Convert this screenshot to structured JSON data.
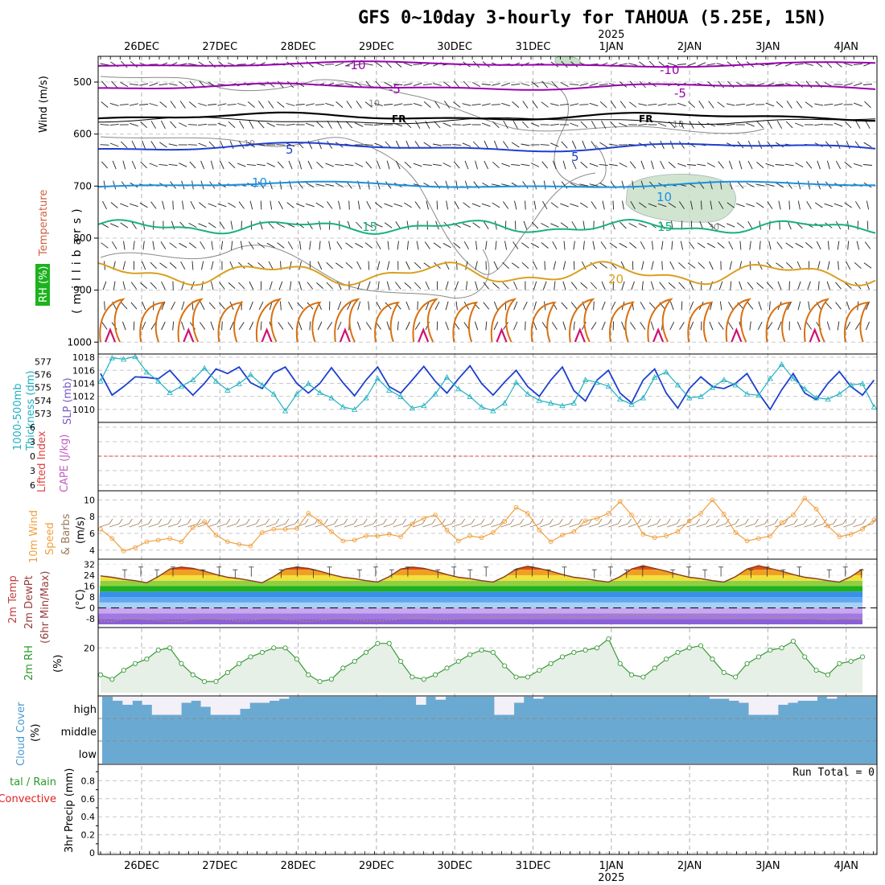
{
  "title": "GFS 0~10day 3-hourly for TAHOUA (5.25E, 15N)",
  "dates": {
    "labels": [
      "26DEC",
      "27DEC",
      "28DEC",
      "29DEC",
      "30DEC",
      "31DEC",
      "1JAN",
      "2JAN",
      "3JAN",
      "4JAN"
    ],
    "year_label": "2025",
    "year_under": "1JAN"
  },
  "colors": {
    "temp_minus10": "#9a00b0",
    "temp_minus5": "#9a00b0",
    "freezing": "#000000",
    "temp_5": "#1e3fd0",
    "temp_10": "#1a90e0",
    "temp_15": "#1ab080",
    "temp_20": "#d9a020",
    "temp_25": "#d87010",
    "temp_30": "#d01070",
    "rh_fill": "#c8e0c8",
    "rh_line": "#8a8a8a",
    "slp": "#1e3fd0",
    "thickness": "#20b0c0",
    "lifted_zero": "#e04040",
    "wind_speed": "#f0a040",
    "barbs": "#9a7a5a",
    "cloud": "#6aaad2",
    "rh2m_line": "#3a9a3a",
    "rh2m_fill": "#e6f0e6",
    "precip_total": "#2a9a2a",
    "precip_convective": "#e02020"
  },
  "panels": {
    "upper_air": {
      "ylabels": [
        {
          "text": "Wind (m/s)",
          "color": "#000000"
        },
        {
          "text": "Temperature (°C)",
          "color": "#c06040",
          "temp_word": "Temperature",
          "temp_color": "#d06040",
          "unit_color": "#d03030"
        },
        {
          "text": "RH (%)",
          "color": "#ffffff",
          "bg": "#1db21d"
        }
      ],
      "unit_label": "(millibars)",
      "pressure_ticks": [
        500,
        600,
        700,
        800,
        900,
        1000
      ],
      "contour_labels": {
        "minus10": "-10",
        "minus5": "-5",
        "fr": "FR",
        "five": "5",
        "ten": "10",
        "fifteen": "15",
        "twenty": "20",
        "rh10": "10",
        "rh30": "30"
      }
    },
    "slp_thickness": {
      "left_label": "1000-500mb\nThickness (dm)",
      "right_label": "SLP (mb)",
      "thickness_ticks": [
        573,
        574,
        575,
        576,
        577
      ],
      "slp_ticks": [
        1010,
        1012,
        1014,
        1016,
        1018
      ]
    },
    "stability": {
      "left_label": "Lifted Index",
      "right_label": "CAPE (J/kg)",
      "ticks": [
        "6",
        "3",
        "0",
        "3",
        "6"
      ]
    },
    "wind10m": {
      "left_label": "10m Wind Speed",
      "right_label": "(m/s)",
      "barbs_label": "& Barbs",
      "ticks": [
        4,
        6,
        8,
        10
      ]
    },
    "temperature": {
      "label_temp": "2m Temp",
      "label_dewpt": "2m DewPt",
      "label_minmax": "(6hr Min/Max)",
      "unit": "(°C)",
      "ticks": [
        32,
        24,
        16,
        8,
        0,
        -8
      ]
    },
    "rh2m": {
      "label": "2m RH",
      "unit": "(%)",
      "ticks": [
        20
      ]
    },
    "cloud": {
      "label": "Cloud Cover",
      "unit": "(%)",
      "layers": [
        "high",
        "middle",
        "low"
      ]
    },
    "precip": {
      "label_total": "tal / Rain",
      "label_convective": "Convective",
      "label_axis": "3hr Precip (mm)",
      "run_total": "Run Total = 0",
      "ticks": [
        "0.8",
        "0.6",
        "0.4",
        "0.2",
        "0"
      ]
    }
  },
  "chart_data": [
    {
      "type": "line",
      "title": "1000-500mb Thickness (dm) / SLP (mb)",
      "x_units": "3-hourly steps from 25DEC 12Z",
      "series": [
        {
          "name": "SLP (mb)",
          "values": [
            1015.5,
            1012.2,
            1013.5,
            1015,
            1014.9,
            1014.7,
            1016,
            1014,
            1012.2,
            1014,
            1016.2,
            1015.5,
            1016.5,
            1014.1,
            1013.2,
            1015.6,
            1016.5,
            1014,
            1012.5,
            1014,
            1016.4,
            1014.1,
            1012.1,
            1014.5,
            1016.5,
            1013.5,
            1012.5,
            1014.5,
            1016.6,
            1014.3,
            1012.5,
            1014.7,
            1016.7,
            1014,
            1012.2,
            1014.2,
            1016,
            1013.5,
            1012,
            1014.5,
            1016.5,
            1012.9,
            1011.3,
            1014.5,
            1016,
            1012.5,
            1011,
            1014.5,
            1016.2,
            1012.5,
            1010.2,
            1013.2,
            1015,
            1013.5,
            1013.2,
            1014,
            1015.5,
            1012.5,
            1010,
            1013,
            1015.5,
            1012.5,
            1011.5,
            1014,
            1015.8,
            1013.5,
            1012.2,
            1014.5
          ]
        },
        {
          "name": "Thickness (dm)",
          "values": [
            575.5,
            577.3,
            577.2,
            577.4,
            576.2,
            575.5,
            574.6,
            575.1,
            575.6,
            576.5,
            575.5,
            574.8,
            575.3,
            576,
            575.2,
            574.5,
            573.2,
            574.5,
            575.3,
            574.6,
            574.2,
            573.5,
            573.3,
            574.2,
            575.7,
            574.8,
            574.3,
            573.4,
            573.6,
            574.5,
            575.8,
            574.9,
            574.3,
            573.5,
            573.2,
            573.8,
            575.4,
            574.5,
            574,
            573.8,
            573.6,
            573.8,
            575.6,
            575.4,
            575.1,
            574.1,
            573.7,
            574.2,
            575.8,
            576.2,
            575.2,
            574.2,
            574.3,
            575,
            575.6,
            575.2,
            574.5,
            574.4,
            575.7,
            576.8,
            575.7,
            574.9,
            574.2,
            574.1,
            574.5,
            575.2,
            575.3,
            573.5
          ]
        }
      ],
      "ylim_slp": [
        1009,
        1018.5
      ],
      "ylim_thickness": [
        572.8,
        577.6
      ]
    },
    {
      "type": "line",
      "title": "10m Wind Speed (m/s)",
      "series": [
        {
          "name": "10m Wind Speed",
          "values": [
            6.5,
            5.4,
            3.9,
            4.3,
            5,
            5.2,
            5.4,
            5,
            6.7,
            7.4,
            5.8,
            5,
            4.7,
            4.5,
            6.1,
            6.5,
            6.5,
            6.6,
            8.4,
            7.4,
            6.2,
            5.1,
            5.2,
            5.7,
            5.7,
            5.9,
            5.6,
            7.1,
            7.8,
            8.2,
            6.4,
            5.1,
            5.7,
            5.5,
            6.1,
            7.4,
            9.1,
            8.4,
            6.4,
            5,
            5.8,
            6.2,
            7.5,
            7.8,
            8.4,
            9.8,
            8.2,
            5.9,
            5.5,
            5.7,
            6.2,
            7.5,
            8.4,
            10,
            8.3,
            6.1,
            5.1,
            5.4,
            5.7,
            7.3,
            8.2,
            10.2,
            8.9,
            6.9,
            5.6,
            5.9,
            6.5,
            7.6
          ]
        }
      ],
      "ylim": [
        3.5,
        10.8
      ]
    },
    {
      "type": "area",
      "title": "2m Temp / 2m DewPt (°C)",
      "series": [
        {
          "name": "2m Temp",
          "values": [
            23.5,
            22.5,
            21,
            20,
            18.5,
            23,
            28.5,
            30,
            29,
            27,
            24.5,
            22.5,
            21.5,
            20,
            18.5,
            23,
            28.5,
            30,
            29,
            27,
            24.5,
            22.5,
            21.5,
            20,
            19,
            23,
            28.5,
            30,
            29,
            27,
            24.5,
            22.5,
            21.5,
            20,
            19,
            23,
            28.5,
            30.5,
            29,
            27,
            24.5,
            22.5,
            21.5,
            20,
            19,
            23,
            28.5,
            31,
            29,
            27,
            24.5,
            22.5,
            21.5,
            20,
            19,
            23,
            28.5,
            31,
            29,
            27,
            24.5,
            22.5,
            21.5,
            20,
            19,
            23,
            28.5,
            31
          ]
        },
        {
          "name": "2m DewPt",
          "values": [
            -9.5,
            -10,
            -8,
            -7.5,
            -8.5,
            -9,
            -10,
            -10,
            -8.5,
            -7.5,
            -8,
            -8.5,
            -9.5,
            -9,
            -8,
            -7.5,
            -8.5,
            -9,
            -10,
            -9,
            -8,
            -7.5,
            -8.5,
            -9.5,
            -9.5,
            -9,
            -8,
            -7,
            -7.5,
            -8.5,
            -8.5,
            -8,
            -7.5,
            -7,
            -6.5,
            -7,
            -7.5,
            -7,
            -6,
            -5.5,
            -6,
            -6.5,
            -7,
            -6.5,
            -6,
            -5,
            -5,
            -5.5,
            -6,
            -6.5,
            -6.5,
            -6,
            -5.5,
            -6,
            -6.5,
            -7.5,
            -8,
            -7.5,
            -7,
            -6.5,
            -7,
            -7.5,
            -8,
            -8.5,
            -8,
            -8,
            -8.5,
            -9
          ]
        }
      ],
      "ylim": [
        -12,
        34
      ]
    },
    {
      "type": "area",
      "title": "2m RH (%)",
      "series": [
        {
          "name": "2m RH",
          "values": [
            8,
            6,
            10,
            13,
            15,
            19,
            20,
            13,
            8,
            5,
            5,
            9,
            13,
            16,
            18,
            20,
            20,
            15,
            8,
            5,
            6,
            11,
            14,
            18,
            22,
            22,
            14,
            7,
            6,
            8,
            11,
            14,
            17,
            19,
            18,
            12,
            7,
            7,
            10,
            13,
            16,
            18,
            19,
            20,
            24,
            13,
            8,
            7,
            11,
            15,
            18,
            20,
            21,
            15,
            9,
            7,
            13,
            16,
            19,
            20,
            23,
            16,
            10,
            8,
            13,
            14,
            16,
            16
          ]
        }
      ],
      "ylim": [
        0,
        28
      ]
    },
    {
      "type": "bar",
      "title": "Cloud Cover (%)",
      "series": [
        {
          "name": "high cloud gap (white)",
          "values": [
            0,
            0.2,
            0.4,
            0.2,
            0.4,
            0.9,
            0.9,
            0.9,
            0.3,
            0.2,
            0.5,
            0.9,
            0.9,
            0.9,
            0.6,
            0.3,
            0.3,
            0.2,
            0.1,
            0,
            0,
            0,
            0,
            0,
            0,
            0,
            0,
            0,
            0,
            0,
            0,
            0,
            0.4,
            0,
            0.15,
            0,
            0,
            0,
            0,
            0,
            0.9,
            0.9,
            0.3,
            0,
            0.1,
            0,
            0,
            0,
            0,
            0,
            0,
            0,
            0,
            0,
            0,
            0,
            0,
            0,
            0,
            0,
            0,
            0,
            0.1,
            0.1,
            0.2,
            0.3,
            0.9,
            0.9,
            0.9,
            0.4,
            0.3,
            0.2,
            0.2,
            0,
            0.1,
            0
          ]
        }
      ],
      "ylim": [
        0,
        1
      ]
    },
    {
      "type": "bar",
      "title": "3hr Precip (mm)",
      "series": [],
      "ylim": [
        0,
        1
      ]
    }
  ]
}
